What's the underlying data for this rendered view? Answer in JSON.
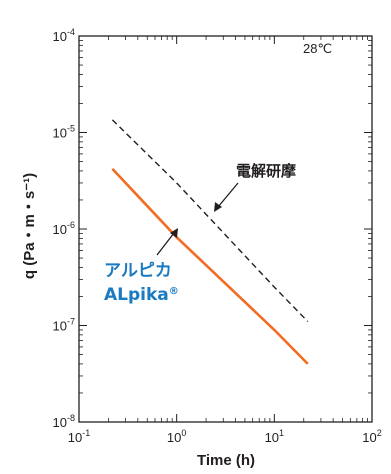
{
  "chart_data": {
    "type": "line",
    "x_scale": "log",
    "y_scale": "log",
    "xlabel": "Time (h)",
    "ylabel": "q (Pa・m・s⁻¹)",
    "xlim": [
      0.1,
      100
    ],
    "ylim": [
      1e-08,
      0.0001
    ],
    "x_ticks": [
      {
        "base": "10",
        "exp": "-1",
        "value": 0.1
      },
      {
        "base": "10",
        "exp": "0",
        "value": 1
      },
      {
        "base": "10",
        "exp": "1",
        "value": 10
      },
      {
        "base": "10",
        "exp": "2",
        "value": 100
      }
    ],
    "y_ticks": [
      {
        "base": "10",
        "exp": "-8",
        "value": 1e-08
      },
      {
        "base": "10",
        "exp": "-7",
        "value": 1e-07
      },
      {
        "base": "10",
        "exp": "-6",
        "value": 1e-06
      },
      {
        "base": "10",
        "exp": "-5",
        "value": 1e-05
      },
      {
        "base": "10",
        "exp": "-4",
        "value": 0.0001
      }
    ],
    "annotation_temperature": "28℃",
    "series": [
      {
        "name": "電解研摩",
        "style": "dashed",
        "color": "#231f20",
        "x": [
          0.22,
          1,
          10,
          22
        ],
        "y": [
          1.35e-05,
          3e-06,
          2.5e-07,
          1.1e-07
        ]
      },
      {
        "name": "アルピカ ALpika®",
        "style": "solid",
        "color": "#f26c22",
        "x": [
          0.22,
          1,
          10,
          22
        ],
        "y": [
          4.2e-06,
          8.2e-07,
          9e-08,
          4e-08
        ]
      }
    ],
    "labels": {
      "dark": "電解研摩",
      "blue_line1": "アルピカ",
      "blue_line2": "ALpika",
      "blue_reg": "®"
    },
    "grid": false,
    "legend": "none"
  }
}
